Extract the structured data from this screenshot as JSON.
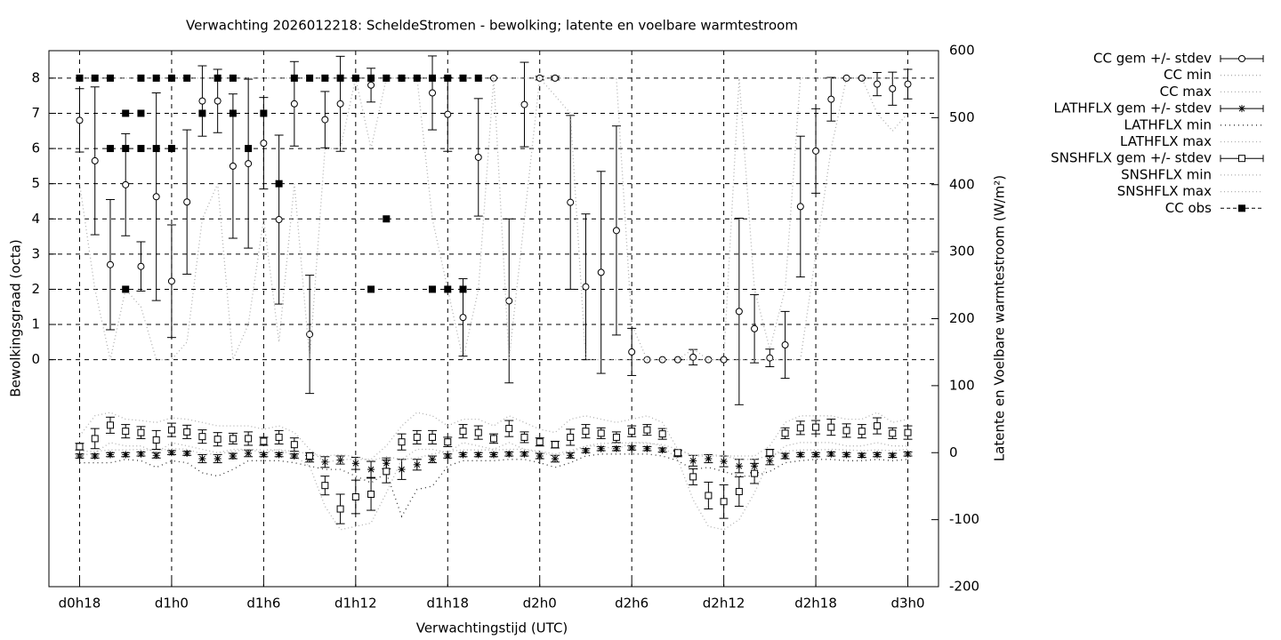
{
  "chart_data": {
    "type": "errorbar",
    "title": "Verwachting 2026012218: ScheldeStromen - bewolking; latente en voelbare warmtestroom",
    "x_label": "Verwachtingstijd (UTC)",
    "y_label": "Bewolkingsgraad (octa)",
    "y2_label": "Latente en Voelbare warmtestroom (W/m²)",
    "xlim": [
      16,
      74
    ],
    "xticks": [
      {
        "value": 18,
        "label": "d0h18"
      },
      {
        "value": 24,
        "label": "d1h0"
      },
      {
        "value": 30,
        "label": "d1h6"
      },
      {
        "value": 36,
        "label": "d1h12"
      },
      {
        "value": 42,
        "label": "d1h18"
      },
      {
        "value": 48,
        "label": "d2h0"
      },
      {
        "value": 54,
        "label": "d2h6"
      },
      {
        "value": 60,
        "label": "d2h12"
      },
      {
        "value": 66,
        "label": "d2h18"
      },
      {
        "value": 72,
        "label": "d3h0"
      }
    ],
    "ylim": [
      -6.45,
      8.78
    ],
    "yticks": [
      0,
      1,
      2,
      3,
      4,
      5,
      6,
      7,
      8
    ],
    "y2lim": [
      -200,
      600
    ],
    "y2ticks": [
      -200,
      -100,
      0,
      100,
      200,
      300,
      400,
      500,
      600
    ],
    "grid": true,
    "legend": "outside top right",
    "x": [
      18,
      19,
      20,
      21,
      22,
      23,
      24,
      25,
      26,
      27,
      28,
      29,
      30,
      31,
      32,
      33,
      34,
      35,
      36,
      37,
      38,
      39,
      40,
      41,
      42,
      43,
      44,
      45,
      46,
      47,
      48,
      49,
      50,
      51,
      52,
      53,
      54,
      55,
      56,
      57,
      58,
      59,
      60,
      61,
      62,
      63,
      64,
      65,
      66,
      67,
      68,
      69,
      70,
      71,
      72
    ],
    "series": [
      {
        "name": "CC gem +/- stdev",
        "color": "#000000",
        "marker": "circle",
        "style": "errorbar",
        "values": [
          6.8,
          5.65,
          2.7,
          4.97,
          2.65,
          4.63,
          2.23,
          4.48,
          7.35,
          7.35,
          5.5,
          5.57,
          6.15,
          3.98,
          7.27,
          0.72,
          6.82,
          7.27,
          8,
          7.8,
          8,
          8,
          8,
          7.58,
          6.97,
          1.2,
          5.75,
          8,
          1.67,
          7.25,
          8,
          8,
          4.47,
          2.07,
          2.48,
          3.67,
          0.22,
          0,
          0,
          0,
          0.07,
          0,
          0,
          1.37,
          0.88,
          0.05,
          0.42,
          4.35,
          5.93,
          7.4,
          8,
          8,
          7.83,
          7.7,
          7.83
        ],
        "errors": [
          0.9,
          2.1,
          1.85,
          1.45,
          0.7,
          2.95,
          1.6,
          2.05,
          1.0,
          0.9,
          2.05,
          2.4,
          1.3,
          2.4,
          1.2,
          1.68,
          0.8,
          1.35,
          0,
          0.48,
          0,
          0,
          0,
          1.05,
          1.05,
          1.1,
          1.67,
          0,
          2.33,
          1.2,
          0.05,
          0.05,
          2.47,
          2.07,
          2.87,
          2.97,
          0.67,
          0,
          0,
          0,
          0.22,
          0,
          0,
          2.65,
          0.97,
          0.25,
          0.95,
          2.0,
          1.2,
          0.62,
          0,
          0,
          0.33,
          0.47,
          0.42
        ]
      },
      {
        "name": "CC min",
        "color": "#b0b0b0",
        "style": "dotted",
        "values": [
          5,
          2,
          0,
          2,
          1.5,
          0,
          0,
          0.5,
          4,
          5,
          0,
          1,
          4,
          0.5,
          5,
          0,
          6,
          6,
          8,
          6,
          8,
          8,
          8,
          4,
          2,
          0,
          2,
          8,
          0,
          4,
          8,
          7.5,
          7,
          0,
          0,
          0,
          0,
          0,
          0,
          0,
          0,
          0,
          0,
          0,
          0,
          0,
          0,
          0,
          3,
          6,
          8,
          8,
          7,
          6.5,
          7
        ]
      },
      {
        "name": "CC max",
        "color": "#b0b0b0",
        "style": "dotted",
        "values": [
          8,
          8,
          8,
          8,
          8,
          8,
          8,
          8,
          8,
          8,
          8,
          8,
          8,
          8,
          8,
          8,
          8,
          8,
          8,
          8,
          8,
          8,
          8,
          8,
          8,
          8,
          8,
          8,
          8,
          8,
          8,
          8,
          8,
          8,
          8,
          8,
          1,
          0,
          0,
          0,
          0.3,
          0,
          0,
          8,
          2,
          0.3,
          2,
          8,
          8,
          8,
          8,
          8,
          8,
          8,
          8
        ]
      },
      {
        "name": "LATHFLX gem +/- stdev",
        "color": "#000000",
        "marker": "star",
        "style": "errorbar",
        "axis": "y2",
        "values": [
          -5,
          -5,
          -3,
          -3,
          -2,
          -4,
          0,
          -1,
          -9,
          -9,
          -5,
          -1,
          -3,
          -3,
          -5,
          -9,
          -14,
          -11,
          -16,
          -25,
          -16,
          -25,
          -18,
          -10,
          -5,
          -3,
          -3,
          -3,
          -2,
          -2,
          -5,
          -9,
          -4,
          3,
          6,
          6,
          7,
          6,
          4,
          -2,
          -12,
          -9,
          -13,
          -20,
          -20,
          -12,
          -5,
          -3,
          -3,
          -2,
          -3,
          -4,
          -3,
          -4,
          -2
        ],
        "errors": [
          3,
          3,
          3,
          3,
          3,
          4,
          3,
          3,
          6,
          6,
          4,
          5,
          3,
          3,
          3,
          5,
          8,
          6,
          9,
          12,
          8,
          15,
          8,
          5,
          3,
          3,
          3,
          3,
          3,
          3,
          4,
          5,
          4,
          3,
          3,
          3,
          3,
          3,
          3,
          4,
          8,
          6,
          8,
          10,
          10,
          6,
          4,
          3,
          3,
          3,
          3,
          3,
          3,
          3,
          3
        ]
      },
      {
        "name": "LATHFLX min",
        "color": "#333333",
        "style": "dotted",
        "axis": "y2",
        "values": [
          -15,
          -15,
          -15,
          -10,
          -12,
          -22,
          -12,
          -15,
          -30,
          -35,
          -25,
          -12,
          -12,
          -12,
          -15,
          -20,
          -25,
          -25,
          -35,
          -45,
          -30,
          -95,
          -55,
          -50,
          -20,
          -12,
          -12,
          -12,
          -10,
          -10,
          -15,
          -22,
          -15,
          -5,
          -2,
          -2,
          -2,
          -2,
          -5,
          -12,
          -25,
          -22,
          -28,
          -35,
          -35,
          -28,
          -15,
          -12,
          -10,
          -10,
          -12,
          -12,
          -10,
          -12,
          -10
        ]
      },
      {
        "name": "LATHFLX max",
        "color": "#b0b0b0",
        "style": "dotted",
        "axis": "y2",
        "values": [
          2,
          2,
          4,
          4,
          5,
          3,
          6,
          5,
          -2,
          -2,
          2,
          5,
          4,
          4,
          2,
          -2,
          -5,
          -3,
          -6,
          -12,
          -6,
          -10,
          -8,
          -2,
          2,
          4,
          4,
          4,
          5,
          5,
          2,
          -2,
          3,
          10,
          14,
          14,
          15,
          14,
          12,
          5,
          -4,
          -2,
          -5,
          -10,
          -10,
          -4,
          2,
          4,
          4,
          5,
          4,
          3,
          4,
          3,
          5
        ]
      },
      {
        "name": "SNSHFLX gem +/- stdev",
        "color": "#000000",
        "marker": "square",
        "style": "errorbar",
        "axis": "y2",
        "values": [
          9,
          21,
          41,
          32,
          30,
          19,
          34,
          31,
          24,
          20,
          21,
          21,
          17,
          23,
          12,
          -5,
          -49,
          -84,
          -66,
          -62,
          -28,
          16,
          23,
          23,
          16,
          32,
          30,
          21,
          36,
          23,
          16,
          12,
          23,
          32,
          29,
          23,
          32,
          34,
          28,
          0,
          -36,
          -64,
          -73,
          -58,
          -31,
          0,
          29,
          37,
          38,
          38,
          33,
          32,
          40,
          29,
          30
        ],
        "errors": [
          5,
          15,
          12,
          10,
          9,
          14,
          10,
          10,
          10,
          10,
          8,
          10,
          6,
          10,
          10,
          5,
          14,
          22,
          25,
          24,
          17,
          12,
          10,
          10,
          7,
          10,
          10,
          7,
          12,
          8,
          6,
          5,
          12,
          10,
          8,
          8,
          8,
          8,
          8,
          4,
          12,
          20,
          25,
          22,
          15,
          5,
          8,
          10,
          10,
          12,
          10,
          10,
          12,
          8,
          10
        ]
      },
      {
        "name": "SNSHFLX min",
        "color": "#b0b0b0",
        "style": "dotted",
        "axis": "y2",
        "values": [
          -5,
          0,
          15,
          10,
          10,
          0,
          15,
          10,
          5,
          0,
          5,
          5,
          0,
          5,
          -5,
          -20,
          -80,
          -115,
          -110,
          -105,
          -60,
          -10,
          5,
          5,
          0,
          15,
          10,
          5,
          15,
          5,
          0,
          -5,
          0,
          10,
          10,
          5,
          15,
          15,
          10,
          -10,
          -70,
          -110,
          -115,
          -100,
          -60,
          -10,
          10,
          15,
          15,
          15,
          10,
          10,
          15,
          10,
          10
        ]
      },
      {
        "name": "SNSHFLX max",
        "color": "#b0b0b0",
        "style": "dotted",
        "axis": "y2",
        "values": [
          25,
          55,
          60,
          50,
          48,
          45,
          52,
          50,
          45,
          40,
          40,
          40,
          35,
          40,
          30,
          5,
          -15,
          -10,
          -10,
          -10,
          10,
          40,
          60,
          55,
          40,
          50,
          50,
          40,
          55,
          45,
          35,
          30,
          50,
          55,
          50,
          45,
          50,
          55,
          45,
          5,
          -5,
          -5,
          -5,
          -5,
          -5,
          10,
          45,
          55,
          55,
          55,
          50,
          50,
          60,
          45,
          50
        ]
      },
      {
        "name": "CC obs",
        "color": "#000000",
        "marker": "filled-square",
        "style": "points",
        "x": [
          18,
          19,
          20,
          20,
          21,
          21,
          21,
          22,
          22,
          22,
          23,
          23,
          24,
          24,
          25,
          26,
          27,
          28,
          28,
          29,
          30,
          31,
          32,
          33,
          34,
          35,
          36,
          37,
          37,
          38,
          38,
          39,
          40,
          41,
          41,
          42,
          42,
          43,
          43,
          44
        ],
        "values": [
          8,
          8,
          8,
          6,
          7,
          6,
          2,
          8,
          7,
          6,
          8,
          6,
          8,
          6,
          8,
          7,
          8,
          8,
          7,
          6,
          7,
          5,
          8,
          8,
          8,
          8,
          8,
          8,
          2,
          8,
          4,
          8,
          8,
          8,
          2,
          8,
          2,
          8,
          2,
          8
        ]
      }
    ]
  }
}
